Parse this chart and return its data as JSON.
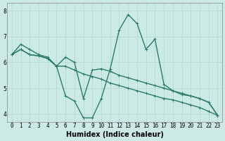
{
  "xlabel": "Humidex (Indice chaleur)",
  "background_color": "#cceae4",
  "plot_bg_color": "#cceae4",
  "line_color": "#2d7a6a",
  "marker": "+",
  "markersize": 3,
  "linewidth": 1.0,
  "ylim": [
    3.7,
    8.3
  ],
  "xlim": [
    -0.5,
    23.5
  ],
  "yticks": [
    4,
    5,
    6,
    7,
    8
  ],
  "xticks": [
    0,
    1,
    2,
    3,
    4,
    5,
    6,
    7,
    8,
    9,
    10,
    11,
    12,
    13,
    14,
    15,
    16,
    17,
    18,
    19,
    20,
    21,
    22,
    23
  ],
  "lines": [
    [
      6.3,
      6.7,
      6.5,
      6.3,
      6.2,
      5.85,
      4.7,
      4.5,
      3.85,
      3.85,
      4.6,
      5.75,
      7.25,
      7.85,
      7.5,
      6.5,
      6.9,
      5.15,
      4.9,
      4.75,
      4.7,
      4.6,
      4.45,
      3.95
    ],
    [
      6.3,
      6.5,
      6.3,
      6.25,
      6.15,
      5.85,
      5.85,
      5.7,
      5.55,
      5.45,
      5.35,
      5.2,
      5.1,
      5.0,
      4.9,
      4.8,
      4.7,
      4.6,
      4.55,
      4.45,
      4.35,
      4.25,
      4.1,
      3.95
    ],
    [
      6.3,
      6.5,
      6.3,
      6.25,
      6.15,
      5.85,
      6.2,
      6.0,
      4.6,
      5.7,
      5.75,
      5.65,
      5.5,
      5.4,
      5.3,
      5.2,
      5.1,
      5.0,
      4.9,
      4.8,
      4.7,
      4.6,
      4.45,
      3.95
    ]
  ],
  "grid_color": "#b0d8ce",
  "tick_fontsize": 5.5,
  "xlabel_fontsize": 7
}
